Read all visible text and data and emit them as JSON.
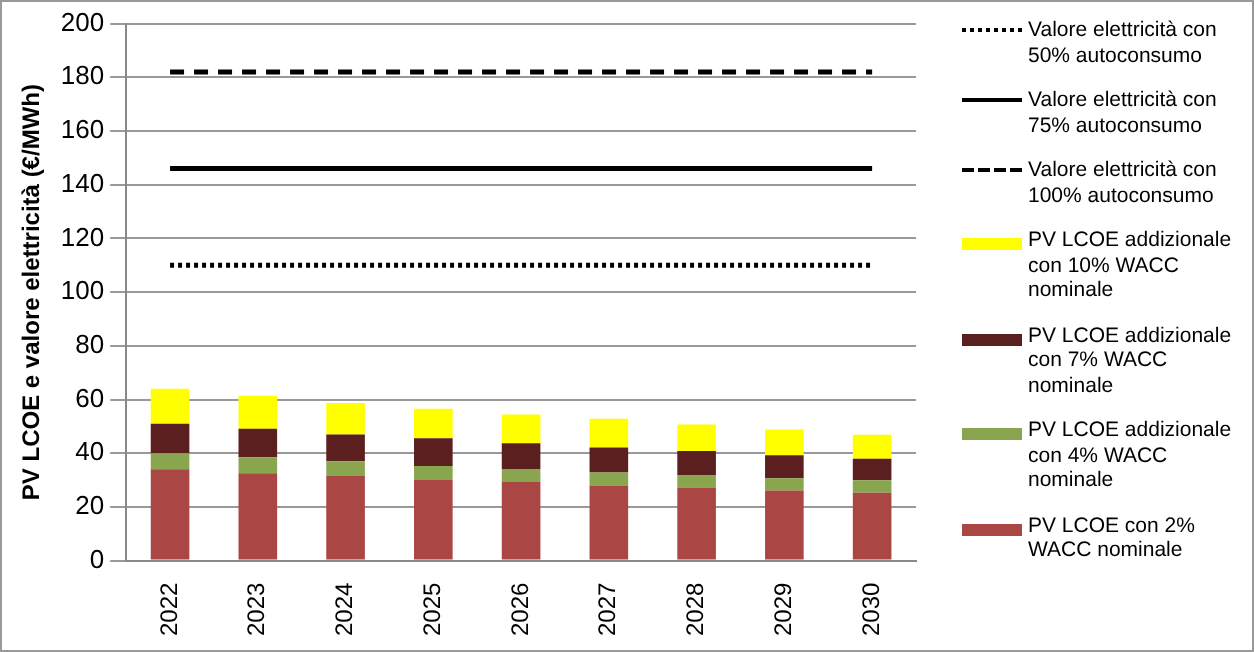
{
  "chart_data": {
    "type": "bar",
    "stacked": true,
    "ylabel": "PV LCOE e valore elettricità (€/MWh)",
    "categories": [
      "2022",
      "2023",
      "2024",
      "2025",
      "2026",
      "2027",
      "2028",
      "2029",
      "2030"
    ],
    "ylim": [
      0,
      200
    ],
    "yticks": [
      0,
      20,
      40,
      60,
      80,
      100,
      120,
      140,
      160,
      180,
      200
    ],
    "grid": "y",
    "legend": "right",
    "series": [
      {
        "name": "PV LCOE con 2% WACC nominale",
        "color": "#aa4643",
        "values": [
          34,
          32.5,
          31.5,
          30,
          29.3,
          28,
          27.2,
          26.1,
          25.3
        ]
      },
      {
        "name": "PV LCOE addizionale con 4%  WACC nominale",
        "color": "#89a54e",
        "values": [
          6,
          6,
          5.5,
          5.2,
          4.8,
          4.8,
          4.5,
          4.6,
          4.6
        ]
      },
      {
        "name": "PV LCOE addizionale con 7% WACC nominale",
        "color": "#5c1f1f",
        "values": [
          11,
          10.6,
          10,
          10.4,
          9.6,
          9.3,
          9.1,
          8.5,
          8
        ]
      },
      {
        "name": "PV LCOE addizionale con 10% WACC nominale",
        "color": "#ffff00",
        "values": [
          13,
          12.3,
          11.7,
          11,
          10.7,
          10.7,
          9.9,
          9.6,
          9
        ]
      },
      {
        "name": "Valore elettricità con 100% autoconsumo",
        "type": "line",
        "line_style": "dashed",
        "color": "#000000",
        "values": [
          182,
          182,
          182,
          182,
          182,
          182,
          182,
          182,
          182
        ]
      },
      {
        "name": "Valore elettricità con 75% autoconsumo",
        "type": "line",
        "line_style": "solid",
        "color": "#000000",
        "values": [
          146,
          146,
          146,
          146,
          146,
          146,
          146,
          146,
          146
        ]
      },
      {
        "name": "Valore elettricità con 50% autoconsumo",
        "type": "line",
        "line_style": "dotted",
        "color": "#000000",
        "values": [
          110,
          110,
          110,
          110,
          110,
          110,
          110,
          110,
          110
        ]
      }
    ]
  }
}
